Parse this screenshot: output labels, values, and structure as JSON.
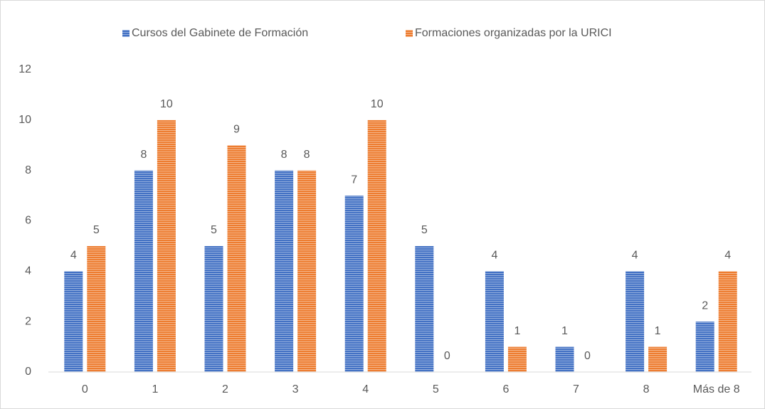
{
  "chart_data": {
    "type": "bar",
    "categories": [
      "0",
      "1",
      "2",
      "3",
      "4",
      "5",
      "6",
      "7",
      "8",
      "Más de 8"
    ],
    "series": [
      {
        "name": "Cursos del Gabinete de Formación",
        "color": "#4472c4",
        "values": [
          4,
          8,
          5,
          8,
          7,
          5,
          4,
          1,
          4,
          2
        ]
      },
      {
        "name": "Formaciones organizadas por la URICI",
        "color": "#ed7d31",
        "values": [
          5,
          10,
          9,
          8,
          10,
          0,
          1,
          0,
          1,
          4
        ]
      }
    ],
    "ylim": [
      0,
      12
    ],
    "yticks": [
      0,
      2,
      4,
      6,
      8,
      10,
      12
    ],
    "grid": false,
    "legend": "top"
  }
}
